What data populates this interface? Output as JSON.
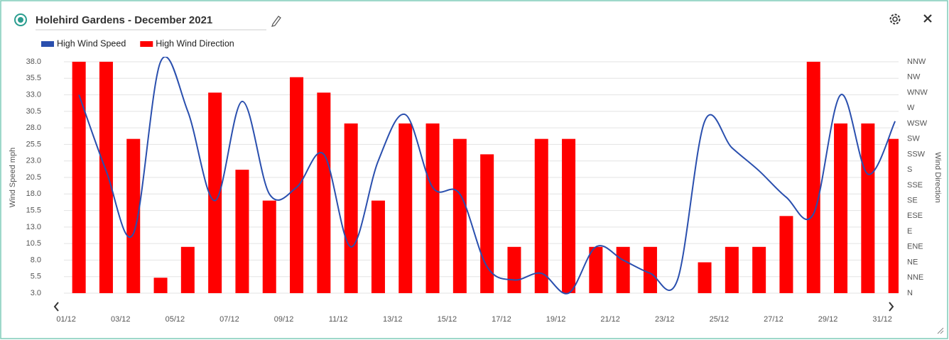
{
  "chart_data": {
    "type": "combo",
    "title": "Holehird Gardens - December 2021",
    "y_label": "Wind Speed mph",
    "y2_label": "Wind Direction",
    "legend": "top-left",
    "grid": true,
    "categories": [
      "01/12",
      null,
      "03/12",
      null,
      "05/12",
      null,
      "07/12",
      null,
      "09/12",
      null,
      "11/12",
      null,
      "13/12",
      null,
      "15/12",
      null,
      "17/12",
      null,
      "19/12",
      null,
      "21/12",
      null,
      "23/12",
      null,
      "25/12",
      null,
      "27/12",
      null,
      "29/12",
      null,
      "31/12"
    ],
    "ylim": [
      3,
      38
    ],
    "yticks": [
      {
        "value": 3,
        "label": "3.0"
      },
      5.5,
      {
        "value": 8,
        "label": "8.0"
      },
      10.5,
      {
        "value": 13,
        "label": "13.0"
      },
      15.5,
      {
        "value": 18,
        "label": "18.0"
      },
      20.5,
      {
        "value": 23,
        "label": "23.0"
      },
      25.5,
      {
        "value": 28,
        "label": "28.0"
      },
      30.5,
      {
        "value": 33,
        "label": "33.0"
      },
      35.5,
      {
        "value": 38,
        "label": "38.0"
      }
    ],
    "y2lim": [
      0,
      337.5
    ],
    "y2ticks": [
      {
        "value": 0,
        "label": "N"
      },
      {
        "value": 22.5,
        "label": "NNE"
      },
      {
        "value": 45,
        "label": "NE"
      },
      {
        "value": 67.5,
        "label": "ENE"
      },
      {
        "value": 90,
        "label": "E"
      },
      {
        "value": 112.5,
        "label": "ESE"
      },
      {
        "value": 135,
        "label": "SE"
      },
      {
        "value": 157.5,
        "label": "SSE"
      },
      {
        "value": 180,
        "label": "S"
      },
      {
        "value": 202.5,
        "label": "SSW"
      },
      {
        "value": 225,
        "label": "SW"
      },
      {
        "value": 247.5,
        "label": "WSW"
      },
      {
        "value": 270,
        "label": "W"
      },
      {
        "value": 292.5,
        "label": "WNW"
      },
      {
        "value": 315,
        "label": "NW"
      },
      {
        "value": 337.5,
        "label": "NNW"
      }
    ],
    "series": [
      {
        "name": "High Wind Speed",
        "type": "line",
        "color": "#2a4fae",
        "values": [
          33,
          21.5,
          12,
          38,
          30.5,
          17,
          32,
          18,
          19,
          24,
          10,
          23,
          30,
          19,
          18,
          7,
          5,
          6,
          3,
          10,
          8,
          6,
          5,
          29,
          25,
          21.5,
          17.5,
          15,
          33,
          21,
          29
        ]
      },
      {
        "name": "High Wind Direction",
        "type": "bar",
        "axis": "y2",
        "color": "#ff0000",
        "values": [
          337.5,
          337.5,
          225,
          22.5,
          67.5,
          292.5,
          180,
          135,
          315,
          292.5,
          247.5,
          135,
          247.5,
          247.5,
          225,
          202.5,
          67.5,
          225,
          225,
          67.5,
          67.5,
          67.5,
          null,
          45,
          67.5,
          67.5,
          112.5,
          337.5,
          247.5,
          247.5,
          225
        ]
      }
    ]
  }
}
